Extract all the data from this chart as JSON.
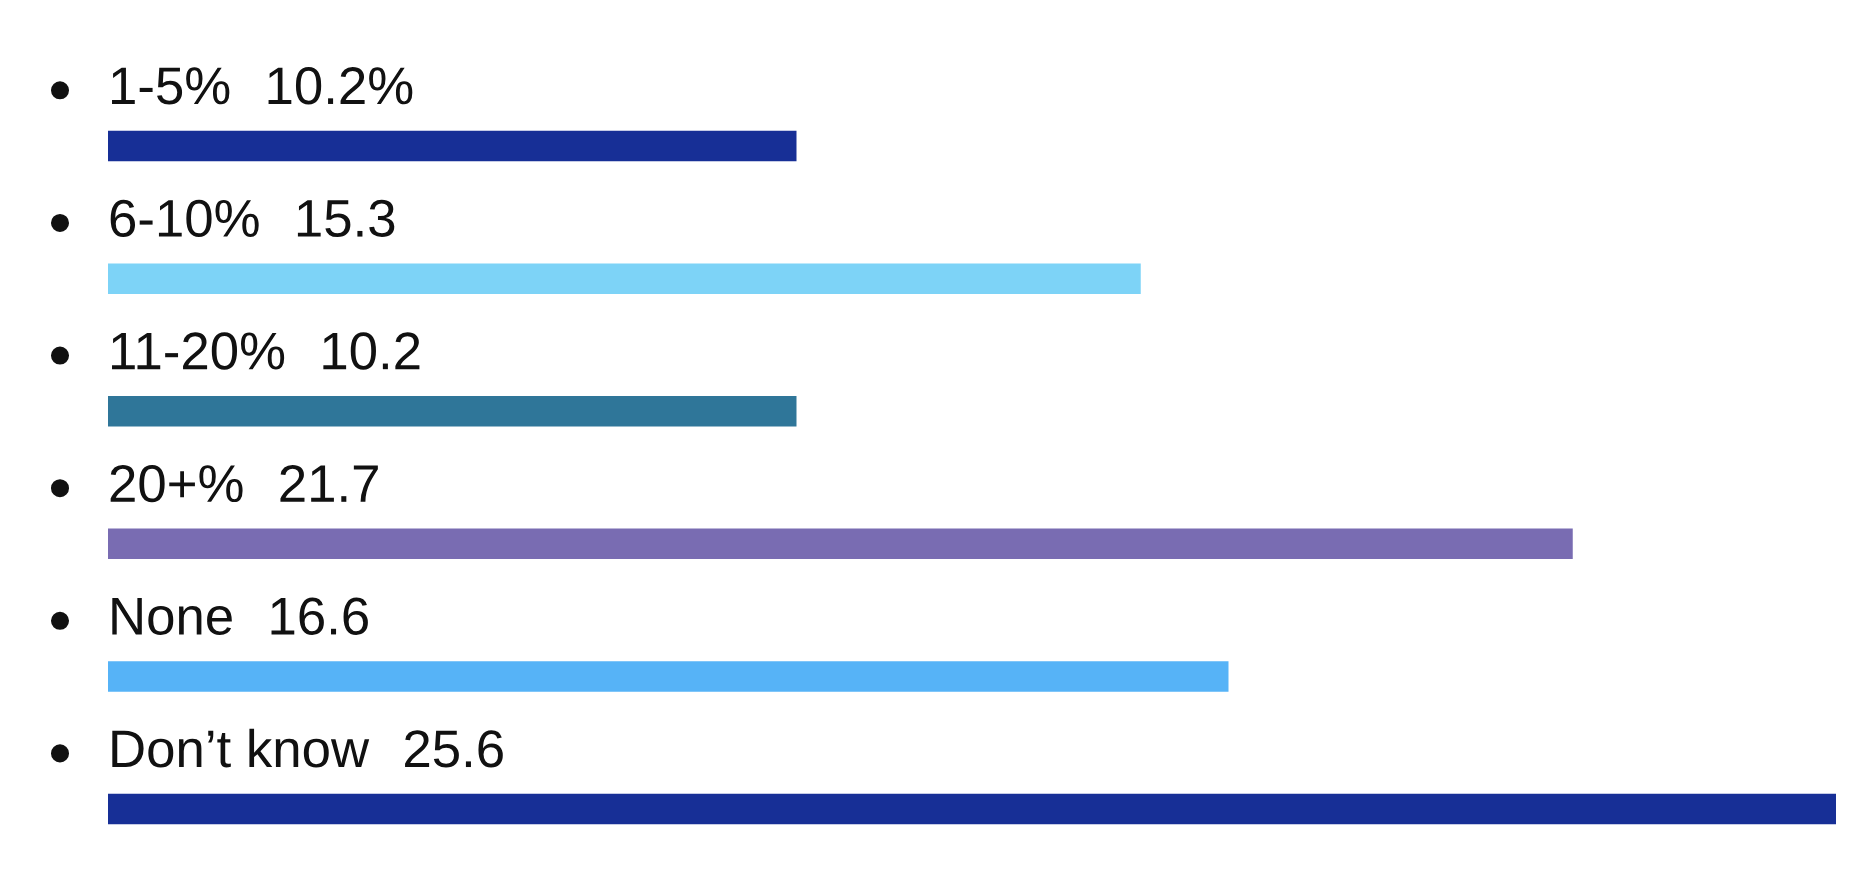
{
  "chart_data": {
    "type": "bar",
    "orientation": "horizontal",
    "categories": [
      "1-5%",
      "6-10%",
      "11-20%",
      "20+%",
      "None",
      "Don’t know"
    ],
    "values": [
      10.2,
      15.3,
      10.2,
      21.7,
      16.6,
      25.6
    ],
    "colors": [
      "#172f96",
      "#7dd3f7",
      "#2f7699",
      "#796cb2",
      "#56b3f7",
      "#172f96"
    ],
    "value_labels": [
      "10.2%",
      "15.3",
      "10.2",
      "21.7",
      "16.6",
      "25.6"
    ]
  }
}
